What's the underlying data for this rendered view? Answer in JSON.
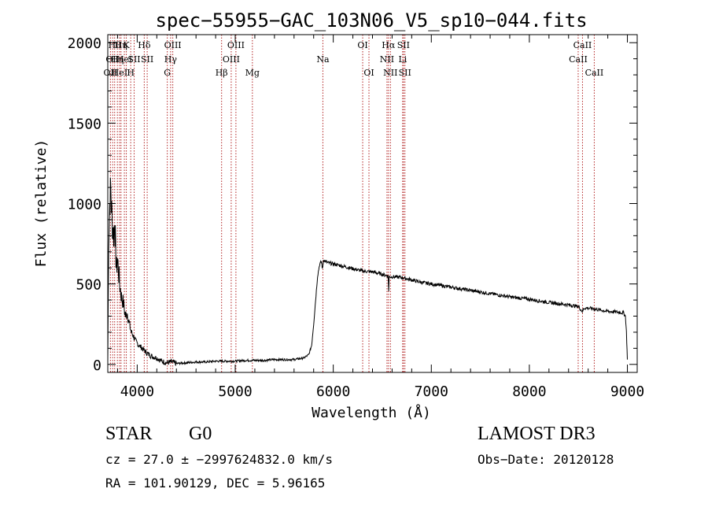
{
  "chart_data": {
    "type": "line",
    "title": "spec−55955−GAC_103N06_V5_sp10−044.fits",
    "xlabel": "Wavelength (Å)",
    "ylabel": "Flux (relative)",
    "xlim": [
      3700,
      9100
    ],
    "ylim": [
      -50,
      2050
    ],
    "xticks": [
      4000,
      5000,
      6000,
      7000,
      8000,
      9000
    ],
    "yticks": [
      0,
      500,
      1000,
      1500,
      2000
    ],
    "grid": false,
    "series": [
      {
        "name": "spectrum",
        "x": [
          3700,
          3705,
          3710,
          3720,
          3730,
          3740,
          3750,
          3760,
          3770,
          3780,
          3790,
          3800,
          3820,
          3840,
          3860,
          3880,
          3900,
          3920,
          3940,
          3960,
          3980,
          4000,
          4050,
          4100,
          4150,
          4200,
          4250,
          4300,
          4350,
          4400,
          4500,
          4600,
          4700,
          4800,
          4900,
          5000,
          5100,
          5200,
          5300,
          5400,
          5500,
          5600,
          5650,
          5700,
          5750,
          5780,
          5800,
          5820,
          5840,
          5860,
          5880,
          5890,
          5900,
          5920,
          5950,
          6000,
          6100,
          6200,
          6300,
          6400,
          6500,
          6560,
          6565,
          6570,
          6600,
          6700,
          6800,
          6900,
          7000,
          7200,
          7400,
          7600,
          7800,
          8000,
          8200,
          8400,
          8500,
          8540,
          8560,
          8600,
          8660,
          8700,
          8800,
          8900,
          8960,
          8980,
          8990,
          9000
        ],
        "y": [
          10,
          400,
          800,
          1000,
          1100,
          950,
          850,
          800,
          900,
          700,
          600,
          650,
          500,
          420,
          380,
          300,
          320,
          250,
          200,
          180,
          150,
          130,
          100,
          70,
          50,
          40,
          20,
          10,
          15,
          5,
          10,
          15,
          15,
          20,
          20,
          20,
          25,
          25,
          25,
          30,
          30,
          30,
          35,
          40,
          60,
          120,
          250,
          400,
          550,
          620,
          640,
          590,
          650,
          640,
          630,
          625,
          610,
          595,
          580,
          575,
          560,
          550,
          460,
          545,
          545,
          540,
          525,
          510,
          500,
          480,
          460,
          440,
          420,
          405,
          385,
          370,
          360,
          330,
          350,
          350,
          345,
          340,
          330,
          325,
          320,
          300,
          200,
          30
        ]
      }
    ],
    "line_markers": [
      {
        "wl": 3727,
        "row": 2,
        "label": "OII"
      },
      {
        "wl": 3750,
        "row": 1,
        "label": "OII"
      },
      {
        "wl": 3770,
        "row": 0,
        "label": "Hθ"
      },
      {
        "wl": 3798,
        "row": 1,
        "label": "Hη"
      },
      {
        "wl": 3820,
        "row": 2,
        "label": "HeI"
      },
      {
        "wl": 3835,
        "row": 0,
        "label": "Hη"
      },
      {
        "wl": 3869,
        "row": 1,
        "label": "HeI"
      },
      {
        "wl": 3889,
        "row": 0,
        "label": "K"
      },
      {
        "wl": 3934,
        "row": 2,
        "label": "H"
      },
      {
        "wl": 3969,
        "row": 1,
        "label": "SII"
      },
      {
        "wl": 4072,
        "row": 0,
        "label": "Hδ"
      },
      {
        "wl": 4102,
        "row": 1,
        "label": "SII"
      },
      {
        "wl": 4307,
        "row": 2,
        "label": "G"
      },
      {
        "wl": 4341,
        "row": 1,
        "label": "Hγ"
      },
      {
        "wl": 4363,
        "row": 0,
        "label": "OIII"
      },
      {
        "wl": 4861,
        "row": 2,
        "label": "Hβ"
      },
      {
        "wl": 4959,
        "row": 1,
        "label": "OIII"
      },
      {
        "wl": 5007,
        "row": 0,
        "label": "OIII"
      },
      {
        "wl": 5175,
        "row": 2,
        "label": "Mg"
      },
      {
        "wl": 5894,
        "row": 1,
        "label": "Na"
      },
      {
        "wl": 6300,
        "row": 0,
        "label": "OI"
      },
      {
        "wl": 6364,
        "row": 2,
        "label": "OI"
      },
      {
        "wl": 6548,
        "row": 1,
        "label": "NII"
      },
      {
        "wl": 6563,
        "row": 0,
        "label": "Hα"
      },
      {
        "wl": 6583,
        "row": 2,
        "label": "NII"
      },
      {
        "wl": 6708,
        "row": 1,
        "label": "Li"
      },
      {
        "wl": 6716,
        "row": 0,
        "label": "SII"
      },
      {
        "wl": 6731,
        "row": 2,
        "label": "SII"
      },
      {
        "wl": 8498,
        "row": 1,
        "label": "CaII"
      },
      {
        "wl": 8542,
        "row": 0,
        "label": "CaII"
      },
      {
        "wl": 8662,
        "row": 2,
        "label": "CaII"
      }
    ]
  },
  "info": {
    "class_label": "STAR",
    "subclass": "G0",
    "survey": "LAMOST DR3",
    "redshift": "cz = 27.0 ± −2997624832.0 km/s",
    "obs_date": "Obs−Date: 20120128",
    "coords": "RA = 101.90129, DEC =   5.96165"
  },
  "colors": {
    "axis": "#000000",
    "spectrum": "#000000",
    "marker_line": "#b22222"
  }
}
